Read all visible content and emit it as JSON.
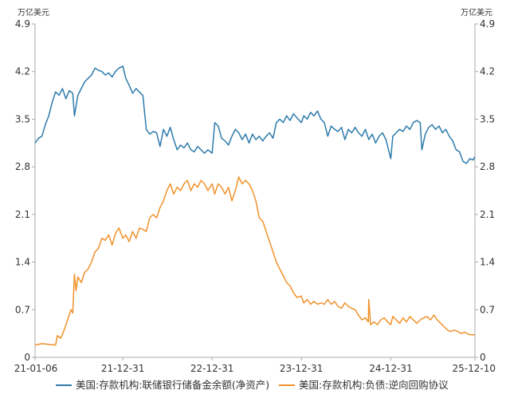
{
  "chart_data": {
    "type": "line",
    "unit_left": "万亿美元",
    "unit_right": "万亿美元",
    "ylim": [
      0,
      4.9
    ],
    "y_ticks": [
      "0",
      "0.7",
      "1.4",
      "2.1",
      "2.8",
      "3.5",
      "4.2",
      "4.9"
    ],
    "x_tick_labels": [
      "21-01-06",
      "21-12-31",
      "22-12-31",
      "23-12-31",
      "24-12-31",
      "25-12-10"
    ],
    "x_tick_dates": [
      "2021-01-06",
      "2021-12-31",
      "2022-12-31",
      "2023-12-31",
      "2024-12-31",
      "2025-12-10"
    ],
    "xlim": [
      "2021-01-06",
      "2025-12-10"
    ],
    "grid": "none",
    "legend_position": "bottom",
    "series": [
      {
        "name": "美国:存款机构:联储银行储备金余额(净资产)",
        "color": "#2e7bab",
        "points": [
          [
            "2021-01-06",
            3.15
          ],
          [
            "2021-01-20",
            3.22
          ],
          [
            "2021-02-03",
            3.25
          ],
          [
            "2021-02-17",
            3.42
          ],
          [
            "2021-03-03",
            3.55
          ],
          [
            "2021-03-17",
            3.75
          ],
          [
            "2021-03-31",
            3.9
          ],
          [
            "2021-04-14",
            3.85
          ],
          [
            "2021-04-28",
            3.95
          ],
          [
            "2021-05-12",
            3.8
          ],
          [
            "2021-05-26",
            3.92
          ],
          [
            "2021-06-09",
            3.88
          ],
          [
            "2021-06-16",
            3.55
          ],
          [
            "2021-06-30",
            3.85
          ],
          [
            "2021-07-14",
            3.95
          ],
          [
            "2021-07-28",
            4.05
          ],
          [
            "2021-08-11",
            4.1
          ],
          [
            "2021-08-25",
            4.15
          ],
          [
            "2021-09-08",
            4.25
          ],
          [
            "2021-09-22",
            4.22
          ],
          [
            "2021-10-06",
            4.2
          ],
          [
            "2021-10-20",
            4.15
          ],
          [
            "2021-11-03",
            4.18
          ],
          [
            "2021-11-17",
            4.12
          ],
          [
            "2021-12-01",
            4.2
          ],
          [
            "2021-12-15",
            4.25
          ],
          [
            "2021-12-31",
            4.28
          ],
          [
            "2022-01-12",
            4.1
          ],
          [
            "2022-01-26",
            4.0
          ],
          [
            "2022-02-09",
            3.88
          ],
          [
            "2022-02-23",
            3.95
          ],
          [
            "2022-03-09",
            3.9
          ],
          [
            "2022-03-23",
            3.85
          ],
          [
            "2022-04-06",
            3.35
          ],
          [
            "2022-04-20",
            3.28
          ],
          [
            "2022-05-04",
            3.32
          ],
          [
            "2022-05-18",
            3.3
          ],
          [
            "2022-06-01",
            3.1
          ],
          [
            "2022-06-15",
            3.35
          ],
          [
            "2022-06-29",
            3.25
          ],
          [
            "2022-07-13",
            3.38
          ],
          [
            "2022-07-27",
            3.2
          ],
          [
            "2022-08-10",
            3.05
          ],
          [
            "2022-08-24",
            3.12
          ],
          [
            "2022-09-07",
            3.08
          ],
          [
            "2022-09-21",
            3.15
          ],
          [
            "2022-10-05",
            3.05
          ],
          [
            "2022-10-19",
            3.02
          ],
          [
            "2022-11-02",
            3.1
          ],
          [
            "2022-11-16",
            3.05
          ],
          [
            "2022-11-30",
            3.0
          ],
          [
            "2022-12-14",
            3.05
          ],
          [
            "2022-12-31",
            3.0
          ],
          [
            "2023-01-11",
            3.45
          ],
          [
            "2023-01-25",
            3.4
          ],
          [
            "2023-02-08",
            3.22
          ],
          [
            "2023-02-22",
            3.18
          ],
          [
            "2023-03-08",
            3.12
          ],
          [
            "2023-03-22",
            3.25
          ],
          [
            "2023-04-05",
            3.35
          ],
          [
            "2023-04-19",
            3.3
          ],
          [
            "2023-05-03",
            3.2
          ],
          [
            "2023-05-17",
            3.28
          ],
          [
            "2023-05-31",
            3.15
          ],
          [
            "2023-06-14",
            3.28
          ],
          [
            "2023-06-28",
            3.2
          ],
          [
            "2023-07-12",
            3.25
          ],
          [
            "2023-07-26",
            3.18
          ],
          [
            "2023-08-09",
            3.25
          ],
          [
            "2023-08-23",
            3.3
          ],
          [
            "2023-09-06",
            3.22
          ],
          [
            "2023-09-20",
            3.45
          ],
          [
            "2023-10-04",
            3.5
          ],
          [
            "2023-10-18",
            3.45
          ],
          [
            "2023-11-01",
            3.55
          ],
          [
            "2023-11-15",
            3.48
          ],
          [
            "2023-11-29",
            3.58
          ],
          [
            "2023-12-13",
            3.52
          ],
          [
            "2023-12-31",
            3.45
          ],
          [
            "2024-01-10",
            3.55
          ],
          [
            "2024-01-24",
            3.5
          ],
          [
            "2024-02-07",
            3.6
          ],
          [
            "2024-02-21",
            3.55
          ],
          [
            "2024-03-06",
            3.62
          ],
          [
            "2024-03-20",
            3.5
          ],
          [
            "2024-04-03",
            3.45
          ],
          [
            "2024-04-17",
            3.25
          ],
          [
            "2024-05-01",
            3.4
          ],
          [
            "2024-05-15",
            3.35
          ],
          [
            "2024-05-29",
            3.32
          ],
          [
            "2024-06-12",
            3.38
          ],
          [
            "2024-06-26",
            3.2
          ],
          [
            "2024-07-10",
            3.35
          ],
          [
            "2024-07-24",
            3.3
          ],
          [
            "2024-08-07",
            3.38
          ],
          [
            "2024-08-21",
            3.3
          ],
          [
            "2024-09-04",
            3.25
          ],
          [
            "2024-09-18",
            3.35
          ],
          [
            "2024-10-02",
            3.2
          ],
          [
            "2024-10-16",
            3.28
          ],
          [
            "2024-10-30",
            3.15
          ],
          [
            "2024-11-13",
            3.25
          ],
          [
            "2024-11-27",
            3.3
          ],
          [
            "2024-12-11",
            3.2
          ],
          [
            "2024-12-31",
            2.92
          ],
          [
            "2025-01-08",
            3.25
          ],
          [
            "2025-01-22",
            3.3
          ],
          [
            "2025-02-05",
            3.35
          ],
          [
            "2025-02-19",
            3.32
          ],
          [
            "2025-03-05",
            3.4
          ],
          [
            "2025-03-19",
            3.35
          ],
          [
            "2025-04-02",
            3.45
          ],
          [
            "2025-04-16",
            3.48
          ],
          [
            "2025-04-30",
            3.45
          ],
          [
            "2025-05-07",
            3.05
          ],
          [
            "2025-05-21",
            3.28
          ],
          [
            "2025-06-04",
            3.38
          ],
          [
            "2025-06-18",
            3.42
          ],
          [
            "2025-07-02",
            3.35
          ],
          [
            "2025-07-16",
            3.4
          ],
          [
            "2025-07-30",
            3.3
          ],
          [
            "2025-08-13",
            3.35
          ],
          [
            "2025-08-27",
            3.25
          ],
          [
            "2025-09-10",
            3.18
          ],
          [
            "2025-09-24",
            3.05
          ],
          [
            "2025-10-08",
            3.02
          ],
          [
            "2025-10-22",
            2.88
          ],
          [
            "2025-11-05",
            2.85
          ],
          [
            "2025-11-19",
            2.92
          ],
          [
            "2025-12-03",
            2.9
          ],
          [
            "2025-12-10",
            2.95
          ]
        ]
      },
      {
        "name": "美国:存款机构:负债:逆向回购协议",
        "color": "#f0922b",
        "points": [
          [
            "2021-01-06",
            0.18
          ],
          [
            "2021-02-03",
            0.2
          ],
          [
            "2021-03-03",
            0.19
          ],
          [
            "2021-03-31",
            0.18
          ],
          [
            "2021-04-07",
            0.32
          ],
          [
            "2021-04-21",
            0.28
          ],
          [
            "2021-05-05",
            0.4
          ],
          [
            "2021-05-19",
            0.55
          ],
          [
            "2021-06-02",
            0.7
          ],
          [
            "2021-06-09",
            0.65
          ],
          [
            "2021-06-16",
            1.22
          ],
          [
            "2021-06-23",
            0.98
          ],
          [
            "2021-06-30",
            1.18
          ],
          [
            "2021-07-14",
            1.1
          ],
          [
            "2021-07-28",
            1.25
          ],
          [
            "2021-08-11",
            1.3
          ],
          [
            "2021-08-25",
            1.4
          ],
          [
            "2021-09-08",
            1.55
          ],
          [
            "2021-09-22",
            1.6
          ],
          [
            "2021-10-06",
            1.75
          ],
          [
            "2021-10-20",
            1.72
          ],
          [
            "2021-11-03",
            1.8
          ],
          [
            "2021-11-17",
            1.65
          ],
          [
            "2021-12-01",
            1.82
          ],
          [
            "2021-12-15",
            1.9
          ],
          [
            "2021-12-31",
            1.75
          ],
          [
            "2022-01-12",
            1.8
          ],
          [
            "2022-01-26",
            1.7
          ],
          [
            "2022-02-09",
            1.85
          ],
          [
            "2022-02-23",
            1.75
          ],
          [
            "2022-03-09",
            1.9
          ],
          [
            "2022-03-23",
            1.88
          ],
          [
            "2022-04-06",
            1.85
          ],
          [
            "2022-04-20",
            2.05
          ],
          [
            "2022-05-04",
            2.1
          ],
          [
            "2022-05-18",
            2.05
          ],
          [
            "2022-06-01",
            2.2
          ],
          [
            "2022-06-15",
            2.3
          ],
          [
            "2022-06-29",
            2.45
          ],
          [
            "2022-07-13",
            2.55
          ],
          [
            "2022-07-27",
            2.4
          ],
          [
            "2022-08-10",
            2.5
          ],
          [
            "2022-08-24",
            2.45
          ],
          [
            "2022-09-07",
            2.55
          ],
          [
            "2022-09-21",
            2.6
          ],
          [
            "2022-10-05",
            2.45
          ],
          [
            "2022-10-19",
            2.55
          ],
          [
            "2022-11-02",
            2.5
          ],
          [
            "2022-11-16",
            2.6
          ],
          [
            "2022-11-30",
            2.55
          ],
          [
            "2022-12-14",
            2.45
          ],
          [
            "2022-12-31",
            2.55
          ],
          [
            "2023-01-11",
            2.4
          ],
          [
            "2023-01-25",
            2.55
          ],
          [
            "2023-02-08",
            2.5
          ],
          [
            "2023-02-22",
            2.4
          ],
          [
            "2023-03-08",
            2.5
          ],
          [
            "2023-03-22",
            2.3
          ],
          [
            "2023-04-05",
            2.45
          ],
          [
            "2023-04-19",
            2.65
          ],
          [
            "2023-05-03",
            2.55
          ],
          [
            "2023-05-17",
            2.6
          ],
          [
            "2023-05-31",
            2.55
          ],
          [
            "2023-06-14",
            2.45
          ],
          [
            "2023-06-28",
            2.3
          ],
          [
            "2023-07-12",
            2.05
          ],
          [
            "2023-07-26",
            2.0
          ],
          [
            "2023-08-09",
            1.85
          ],
          [
            "2023-08-23",
            1.7
          ],
          [
            "2023-09-06",
            1.55
          ],
          [
            "2023-09-20",
            1.4
          ],
          [
            "2023-10-04",
            1.3
          ],
          [
            "2023-10-18",
            1.2
          ],
          [
            "2023-11-01",
            1.1
          ],
          [
            "2023-11-15",
            1.05
          ],
          [
            "2023-11-29",
            0.95
          ],
          [
            "2023-12-13",
            0.88
          ],
          [
            "2023-12-31",
            0.9
          ],
          [
            "2024-01-10",
            0.8
          ],
          [
            "2024-01-24",
            0.85
          ],
          [
            "2024-02-07",
            0.78
          ],
          [
            "2024-02-21",
            0.82
          ],
          [
            "2024-03-06",
            0.78
          ],
          [
            "2024-03-20",
            0.8
          ],
          [
            "2024-04-03",
            0.78
          ],
          [
            "2024-04-17",
            0.85
          ],
          [
            "2024-05-01",
            0.78
          ],
          [
            "2024-05-15",
            0.82
          ],
          [
            "2024-05-29",
            0.75
          ],
          [
            "2024-06-12",
            0.72
          ],
          [
            "2024-06-26",
            0.8
          ],
          [
            "2024-07-10",
            0.75
          ],
          [
            "2024-07-24",
            0.72
          ],
          [
            "2024-08-07",
            0.7
          ],
          [
            "2024-08-21",
            0.62
          ],
          [
            "2024-09-04",
            0.55
          ],
          [
            "2024-09-18",
            0.58
          ],
          [
            "2024-09-30",
            0.52
          ],
          [
            "2024-10-02",
            0.85
          ],
          [
            "2024-10-09",
            0.48
          ],
          [
            "2024-10-23",
            0.52
          ],
          [
            "2024-11-06",
            0.48
          ],
          [
            "2024-11-20",
            0.55
          ],
          [
            "2024-12-04",
            0.58
          ],
          [
            "2024-12-18",
            0.52
          ],
          [
            "2024-12-31",
            0.48
          ],
          [
            "2025-01-08",
            0.6
          ],
          [
            "2025-01-22",
            0.55
          ],
          [
            "2025-02-05",
            0.5
          ],
          [
            "2025-02-19",
            0.58
          ],
          [
            "2025-03-05",
            0.52
          ],
          [
            "2025-03-19",
            0.6
          ],
          [
            "2025-04-02",
            0.55
          ],
          [
            "2025-04-16",
            0.5
          ],
          [
            "2025-04-30",
            0.55
          ],
          [
            "2025-05-14",
            0.58
          ],
          [
            "2025-05-28",
            0.6
          ],
          [
            "2025-06-11",
            0.55
          ],
          [
            "2025-06-25",
            0.62
          ],
          [
            "2025-07-09",
            0.55
          ],
          [
            "2025-07-23",
            0.5
          ],
          [
            "2025-08-06",
            0.45
          ],
          [
            "2025-08-20",
            0.4
          ],
          [
            "2025-09-03",
            0.38
          ],
          [
            "2025-09-17",
            0.4
          ],
          [
            "2025-10-01",
            0.38
          ],
          [
            "2025-10-15",
            0.35
          ],
          [
            "2025-10-29",
            0.37
          ],
          [
            "2025-11-12",
            0.34
          ],
          [
            "2025-11-26",
            0.33
          ],
          [
            "2025-12-10",
            0.33
          ]
        ]
      }
    ]
  }
}
